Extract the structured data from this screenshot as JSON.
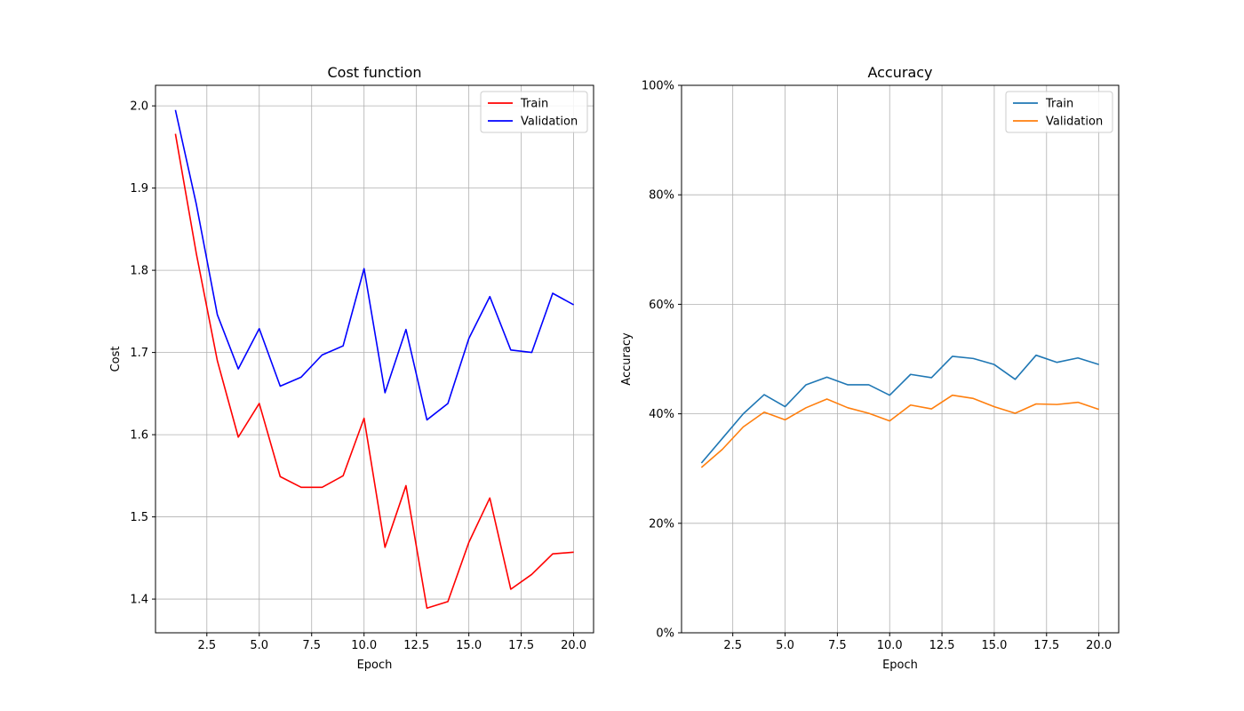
{
  "chart_data": [
    {
      "type": "line",
      "title": "Cost function",
      "xlabel": "Epoch",
      "ylabel": "Cost",
      "xlim": [
        0.05,
        20.95
      ],
      "ylim": [
        1.359,
        2.025
      ],
      "xticks": [
        2.5,
        5.0,
        7.5,
        10.0,
        12.5,
        15.0,
        17.5,
        20.0
      ],
      "xtick_labels": [
        "2.5",
        "5.0",
        "7.5",
        "10.0",
        "12.5",
        "15.0",
        "17.5",
        "20.0"
      ],
      "yticks": [
        1.4,
        1.5,
        1.6,
        1.7,
        1.8,
        1.9,
        2.0
      ],
      "ytick_labels": [
        "1.4",
        "1.5",
        "1.6",
        "1.7",
        "1.8",
        "1.9",
        "2.0"
      ],
      "grid": true,
      "legend_position": "top-right",
      "x": [
        1,
        2,
        3,
        4,
        5,
        6,
        7,
        8,
        9,
        10,
        11,
        12,
        13,
        14,
        15,
        16,
        17,
        18,
        19,
        20
      ],
      "series": [
        {
          "name": "Train",
          "color": "#ff0000",
          "values": [
            1.966,
            1.82,
            1.69,
            1.597,
            1.638,
            1.549,
            1.536,
            1.536,
            1.55,
            1.62,
            1.463,
            1.538,
            1.389,
            1.397,
            1.469,
            1.523,
            1.412,
            1.43,
            1.455,
            1.457
          ]
        },
        {
          "name": "Validation",
          "color": "#0000ff",
          "values": [
            1.995,
            1.88,
            1.746,
            1.68,
            1.729,
            1.659,
            1.67,
            1.697,
            1.708,
            1.802,
            1.651,
            1.728,
            1.618,
            1.638,
            1.717,
            1.768,
            1.703,
            1.7,
            1.772,
            1.758
          ]
        }
      ]
    },
    {
      "type": "line",
      "title": "Accuracy",
      "xlabel": "Epoch",
      "ylabel": "Accuracy",
      "xlim": [
        0.05,
        20.95
      ],
      "ylim": [
        0,
        1
      ],
      "xticks": [
        2.5,
        5.0,
        7.5,
        10.0,
        12.5,
        15.0,
        17.5,
        20.0
      ],
      "xtick_labels": [
        "2.5",
        "5.0",
        "7.5",
        "10.0",
        "12.5",
        "15.0",
        "17.5",
        "20.0"
      ],
      "yticks": [
        0,
        0.2,
        0.4,
        0.6,
        0.8,
        1.0
      ],
      "ytick_labels": [
        "0%",
        "20%",
        "40%",
        "60%",
        "80%",
        "100%"
      ],
      "grid": true,
      "legend_position": "top-right",
      "x": [
        1,
        2,
        3,
        4,
        5,
        6,
        7,
        8,
        9,
        10,
        11,
        12,
        13,
        14,
        15,
        16,
        17,
        18,
        19,
        20
      ],
      "series": [
        {
          "name": "Train",
          "color": "#1f77b4",
          "values": [
            0.31,
            0.355,
            0.4,
            0.435,
            0.413,
            0.453,
            0.467,
            0.453,
            0.453,
            0.434,
            0.472,
            0.466,
            0.505,
            0.501,
            0.49,
            0.463,
            0.507,
            0.494,
            0.502,
            0.49
          ]
        },
        {
          "name": "Validation",
          "color": "#ff7f0e",
          "values": [
            0.302,
            0.335,
            0.376,
            0.403,
            0.389,
            0.411,
            0.427,
            0.411,
            0.401,
            0.387,
            0.416,
            0.409,
            0.434,
            0.428,
            0.413,
            0.401,
            0.418,
            0.417,
            0.421,
            0.408
          ]
        }
      ]
    }
  ]
}
